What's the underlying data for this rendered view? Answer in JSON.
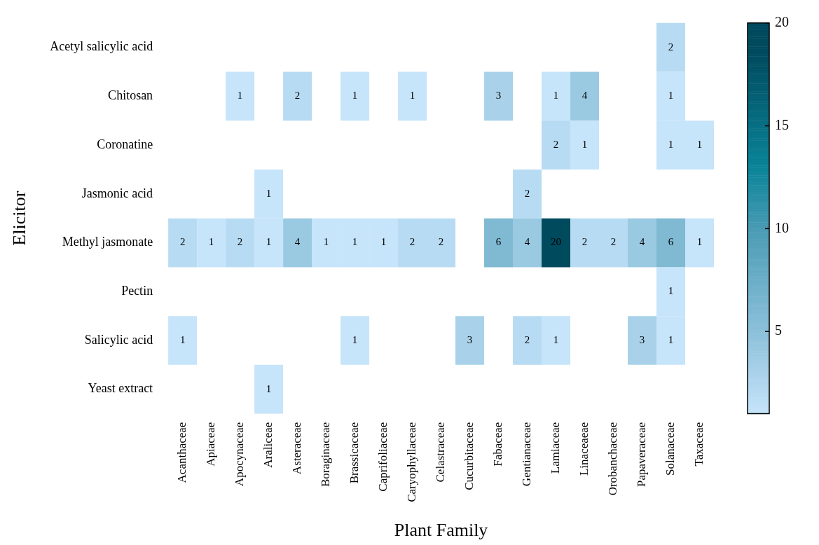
{
  "chart_data": {
    "type": "heatmap",
    "xlabel": "Plant Family",
    "ylabel": "Elicitor",
    "categories": [
      "Acanthaceae",
      "Apiaceae",
      "Apocynaceae",
      "Araliceae",
      "Asteraceae",
      "Boraginaceae",
      "Brassicaceae",
      "Caprifoliaceae",
      "Caryophyllaceae",
      "Celastraceae",
      "Cucurbitaceae",
      "Fabaceae",
      "Gentianaceae",
      "Lamiaceae",
      "Linaceaeae",
      "Orobanchaceae",
      "Papaveraceae",
      "Solanaceae",
      "Taxaceae"
    ],
    "y_categories": [
      "Acetyl salicylic acid",
      "Chitosan",
      "Coronatine",
      "Jasmonic acid",
      "Methyl jasmonate",
      "Pectin",
      "Salicylic acid",
      "Yeast extract"
    ],
    "cells": [
      [
        null,
        null,
        null,
        null,
        null,
        null,
        null,
        null,
        null,
        null,
        null,
        null,
        null,
        null,
        null,
        null,
        null,
        2,
        null
      ],
      [
        null,
        null,
        1,
        null,
        2,
        null,
        1,
        null,
        1,
        null,
        null,
        3,
        null,
        1,
        4,
        null,
        null,
        1,
        null
      ],
      [
        null,
        null,
        null,
        null,
        null,
        null,
        null,
        null,
        null,
        null,
        null,
        null,
        null,
        2,
        1,
        null,
        null,
        1,
        1
      ],
      [
        null,
        null,
        null,
        1,
        null,
        null,
        null,
        null,
        null,
        null,
        null,
        null,
        2,
        null,
        null,
        null,
        null,
        null,
        null
      ],
      [
        2,
        1,
        2,
        1,
        4,
        1,
        1,
        1,
        2,
        2,
        null,
        6,
        4,
        20,
        2,
        2,
        4,
        6,
        1
      ],
      [
        null,
        null,
        null,
        null,
        null,
        null,
        null,
        null,
        null,
        null,
        null,
        null,
        null,
        null,
        null,
        null,
        null,
        1,
        null
      ],
      [
        1,
        null,
        null,
        null,
        null,
        null,
        1,
        null,
        null,
        null,
        3,
        null,
        2,
        1,
        null,
        null,
        3,
        1,
        null
      ],
      [
        null,
        null,
        null,
        1,
        null,
        null,
        null,
        null,
        null,
        null,
        null,
        null,
        null,
        null,
        null,
        null,
        null,
        null,
        null
      ]
    ],
    "clim": [
      1,
      20
    ],
    "cticks": [
      5,
      10,
      15,
      20
    ],
    "data_labels": true,
    "grid": false
  }
}
